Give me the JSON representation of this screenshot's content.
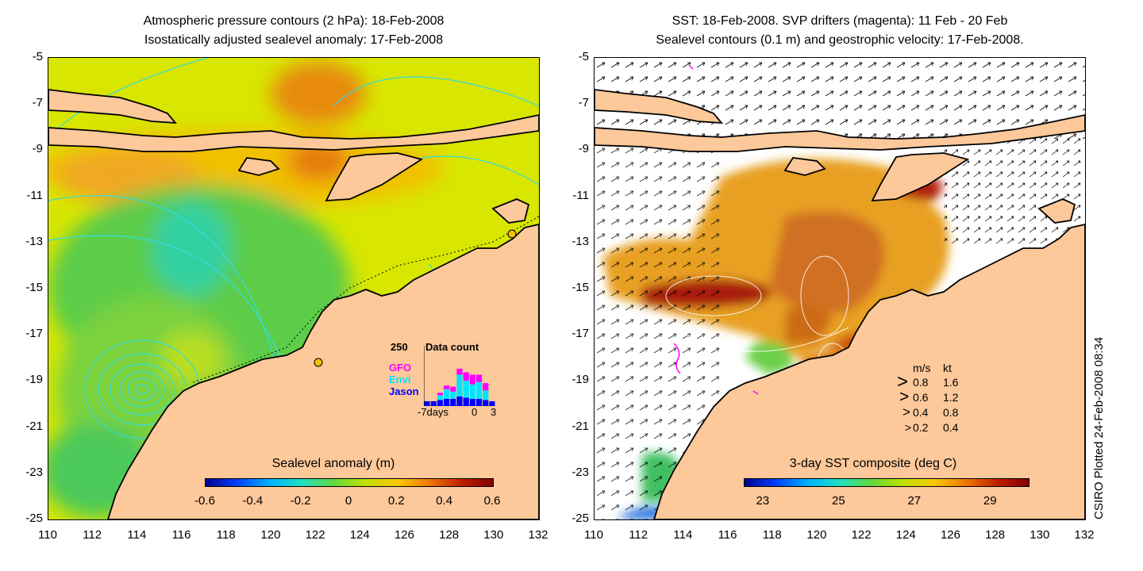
{
  "left_panel": {
    "title_line1": "Atmospheric pressure contours (2 hPa): 18-Feb-2008",
    "title_line2": "Isostatically adjusted sealevel anomaly: 17-Feb-2008",
    "colorbar": {
      "title": "Sealevel anomaly (m)",
      "ticks": [
        "-0.6",
        "-0.4",
        "-0.2",
        "0",
        "0.2",
        "0.4",
        "0.6"
      ],
      "range": [
        -0.6,
        0.6
      ]
    },
    "data_count_inset": {
      "y_max_label": "250",
      "title": "Data count",
      "satellites": [
        {
          "name": "GFO",
          "color": "#ff00ff"
        },
        {
          "name": "Envi",
          "color": "#00e5ff"
        },
        {
          "name": "Jason",
          "color": "#0000ff"
        }
      ],
      "x_labels": [
        "-7days",
        "0",
        "3"
      ],
      "chart_data": {
        "type": "bar",
        "title": "Data count",
        "ylim": [
          0,
          250
        ],
        "days": [
          -7,
          -6,
          -5,
          -4,
          -3,
          -2,
          -1,
          0,
          1,
          2,
          3
        ],
        "series": [
          {
            "name": "Jason",
            "values": [
              20,
              20,
              25,
              30,
              30,
              40,
              35,
              30,
              30,
              25,
              20
            ]
          },
          {
            "name": "Envi",
            "values": [
              0,
              0,
              20,
              40,
              30,
              90,
              70,
              60,
              70,
              40,
              0
            ]
          },
          {
            "name": "GFO",
            "values": [
              0,
              0,
              10,
              15,
              20,
              25,
              35,
              40,
              30,
              30,
              0
            ]
          }
        ]
      }
    }
  },
  "right_panel": {
    "title_line1": "SST: 18-Feb-2008. SVP drifters (magenta): 11 Feb - 20 Feb",
    "title_line2": "Sealevel contours (0.1 m) and geostrophic velocity: 17-Feb-2008.",
    "colorbar": {
      "title": "3-day SST composite (deg C)",
      "ticks": [
        "23",
        "25",
        "27",
        "29"
      ],
      "range": [
        22.5,
        30
      ]
    },
    "velocity_legend": {
      "header_ms": "m/s",
      "header_kt": "kt",
      "rows": [
        {
          "ms": "0.8",
          "kt": "1.6"
        },
        {
          "ms": "0.6",
          "kt": "1.2"
        },
        {
          "ms": "0.4",
          "kt": "0.8"
        },
        {
          "ms": "0.2",
          "kt": "0.4"
        }
      ]
    }
  },
  "axes": {
    "y_labels": [
      "-5",
      "-7",
      "-9",
      "-11",
      "-13",
      "-15",
      "-17",
      "-19",
      "-21",
      "-23",
      "-25"
    ],
    "x_labels": [
      "110",
      "112",
      "114",
      "116",
      "118",
      "120",
      "122",
      "124",
      "126",
      "128",
      "130",
      "132"
    ],
    "lat_range": [
      -25,
      -5
    ],
    "lon_range": [
      110,
      132
    ]
  },
  "credit": "CSIRO Plotted 24-Feb-2008 08:34",
  "colors": {
    "land": "#fdc89a",
    "ocean_base": "#d4e600",
    "frame": "#000000",
    "contour": "#33dddd"
  }
}
